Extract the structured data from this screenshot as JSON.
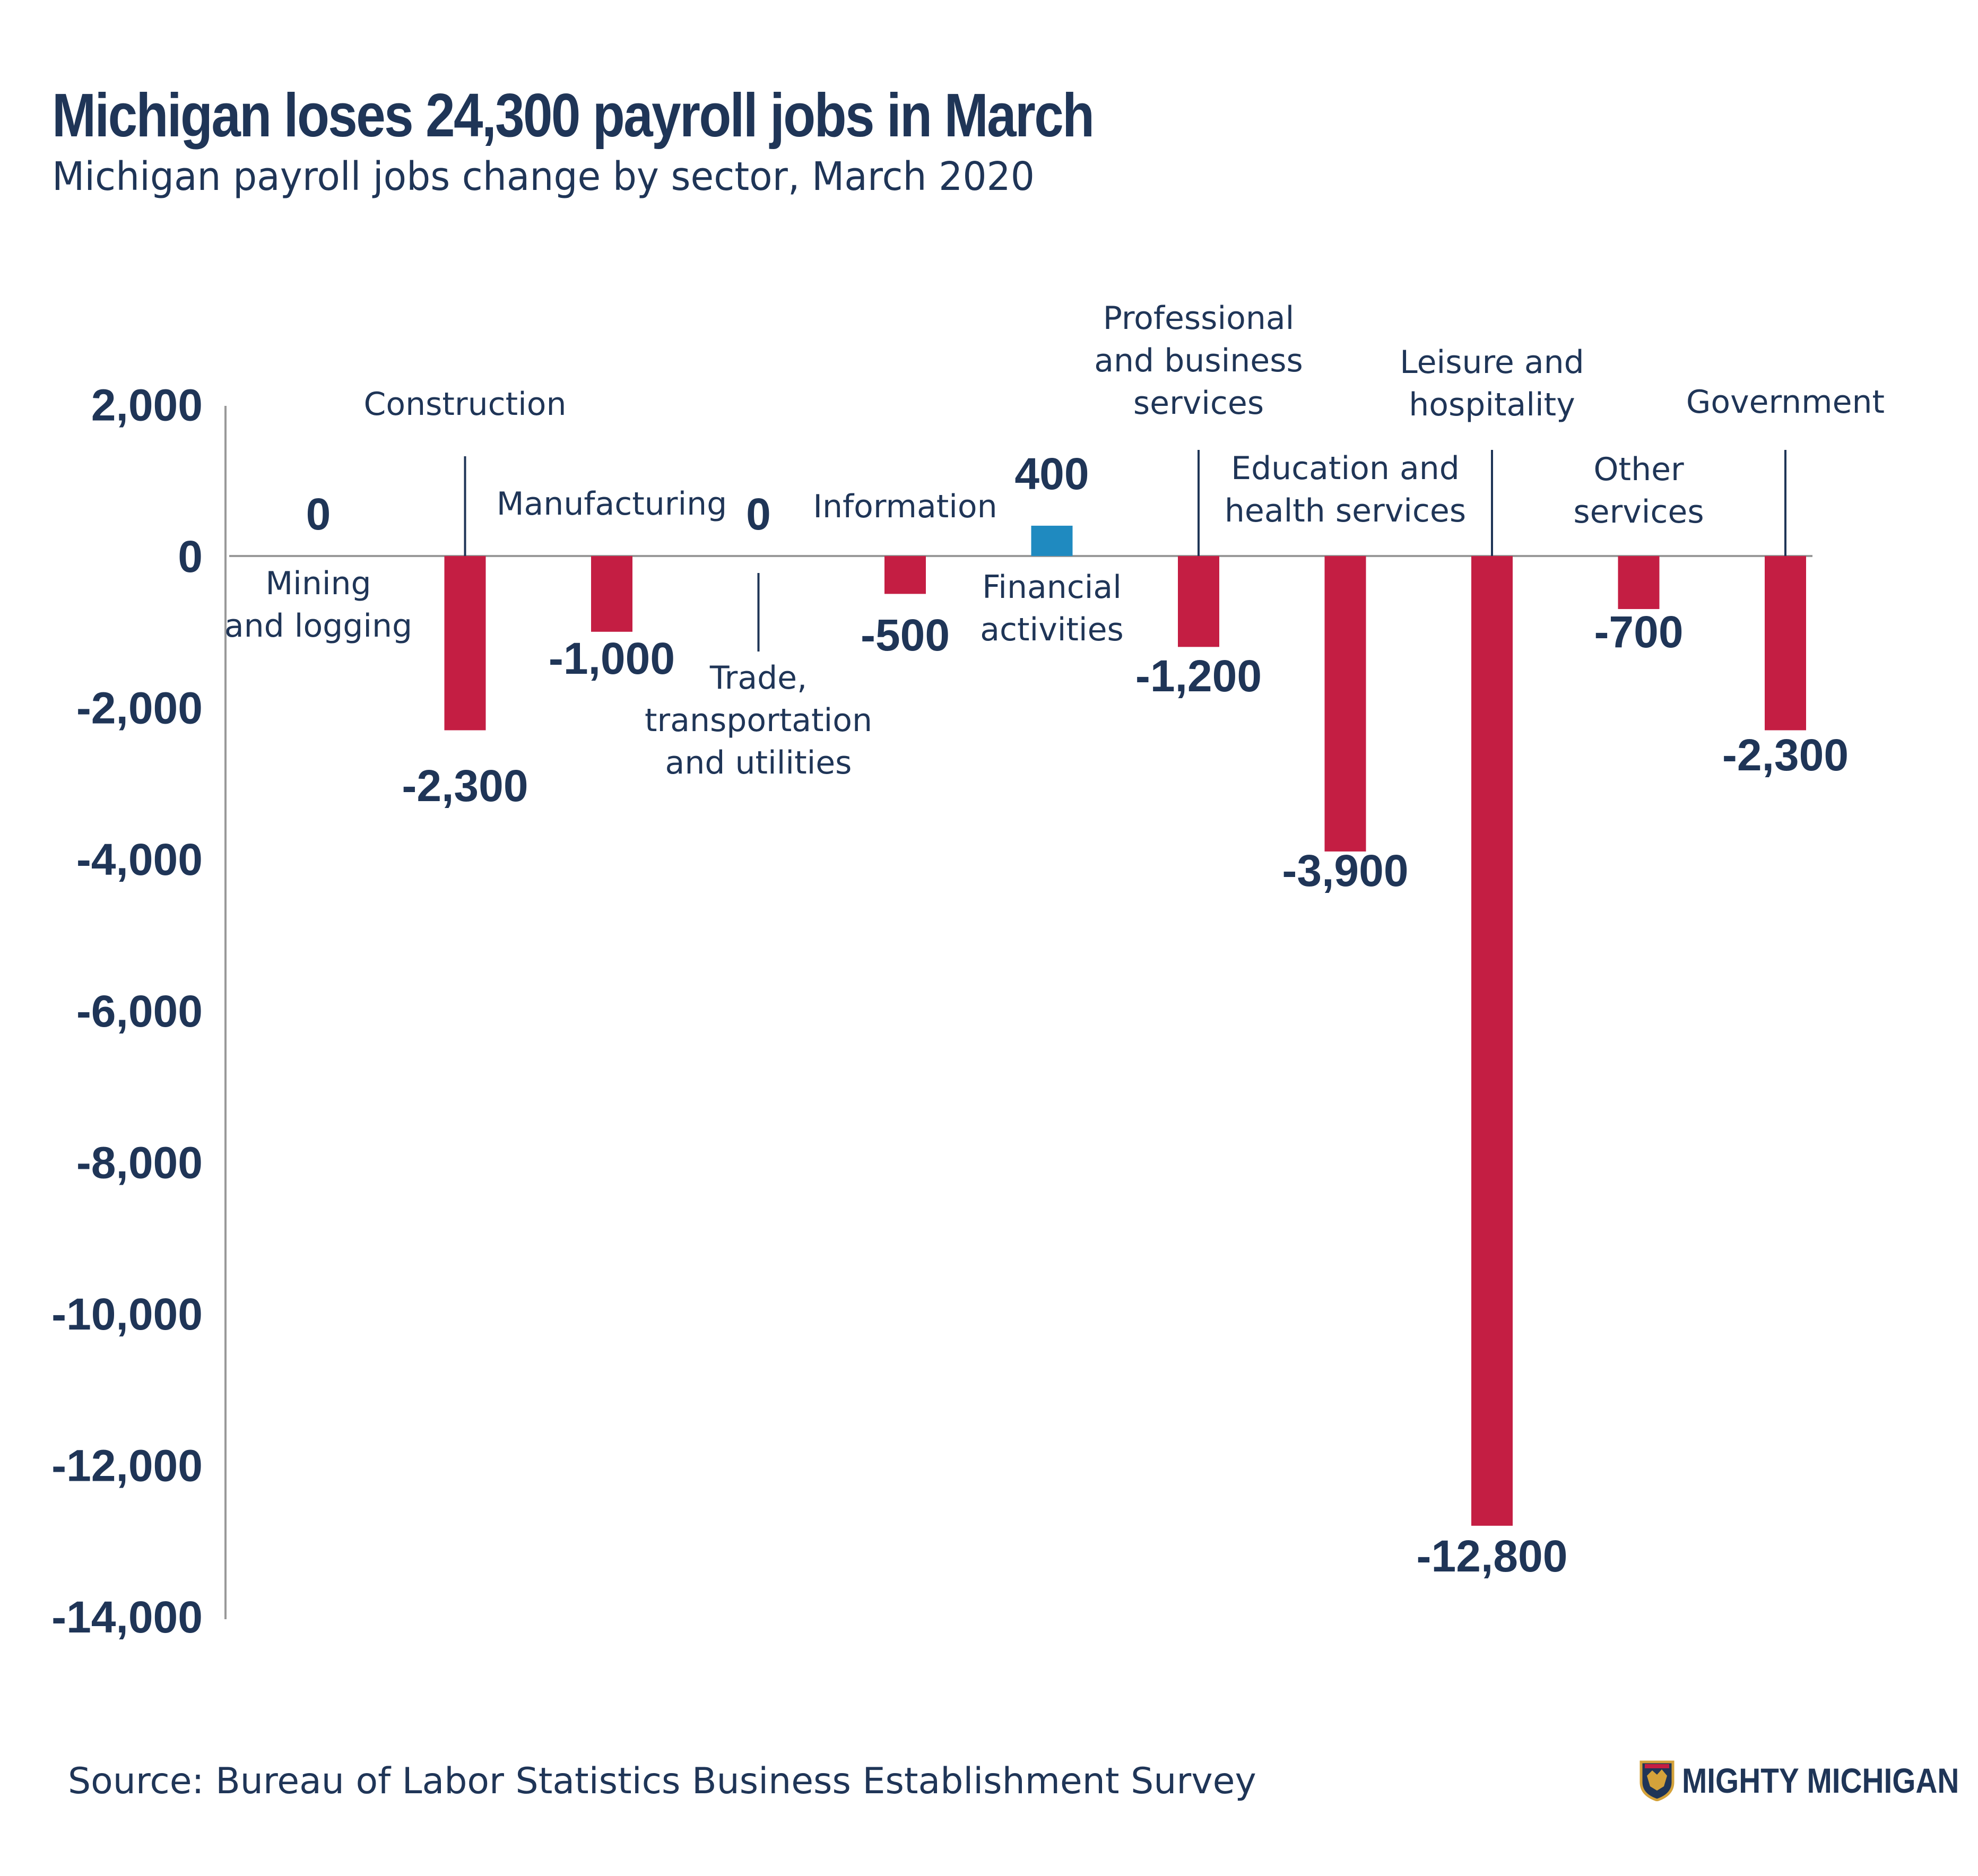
{
  "title": "Michigan loses 24,300 payroll jobs in March",
  "subtitle": "Michigan payroll jobs change by sector, March 2020",
  "source": "Source: Bureau of Labor Statistics Business Establishment Survey",
  "brand": {
    "name": "MIGHTY MICHIGAN",
    "icon": "michigan-shield-icon"
  },
  "colors": {
    "negative": "#c41e43",
    "positive": "#1f8ac0",
    "text": "#1f3557",
    "axis": "#999999"
  },
  "chart_data": {
    "type": "bar",
    "ylim": [
      -14000,
      2000
    ],
    "yticks": [
      2000,
      0,
      -2000,
      -4000,
      -6000,
      -8000,
      -10000,
      -12000,
      -14000
    ],
    "ytick_labels": [
      "2,000",
      "0",
      "-2,000",
      "-4,000",
      "-6,000",
      "-8,000",
      "-10,000",
      "-12,000",
      "-14,000"
    ],
    "grid": false,
    "legend": "none",
    "categories": [
      {
        "lines": [
          "Mining",
          "and logging"
        ],
        "value": 0,
        "value_label": "0"
      },
      {
        "lines": [
          "Construction"
        ],
        "value": -2300,
        "value_label": "-2,300"
      },
      {
        "lines": [
          "Manufacturing"
        ],
        "value": -1000,
        "value_label": "-1,000"
      },
      {
        "lines": [
          "Trade,",
          "transportation",
          "and utilities"
        ],
        "value": 0,
        "value_label": "0"
      },
      {
        "lines": [
          "Information"
        ],
        "value": -500,
        "value_label": "-500"
      },
      {
        "lines": [
          "Financial",
          "activities"
        ],
        "value": 400,
        "value_label": "400"
      },
      {
        "lines": [
          "Professional",
          "and business",
          "services"
        ],
        "value": -1200,
        "value_label": "-1,200"
      },
      {
        "lines": [
          "Education and",
          "health services"
        ],
        "value": -3900,
        "value_label": "-3,900"
      },
      {
        "lines": [
          "Leisure and",
          "hospitality"
        ],
        "value": -12800,
        "value_label": "-12,800"
      },
      {
        "lines": [
          "Other",
          "services"
        ],
        "value": -700,
        "value_label": "-700"
      },
      {
        "lines": [
          "Government"
        ],
        "value": -2300,
        "value_label": "-2,300"
      }
    ]
  }
}
